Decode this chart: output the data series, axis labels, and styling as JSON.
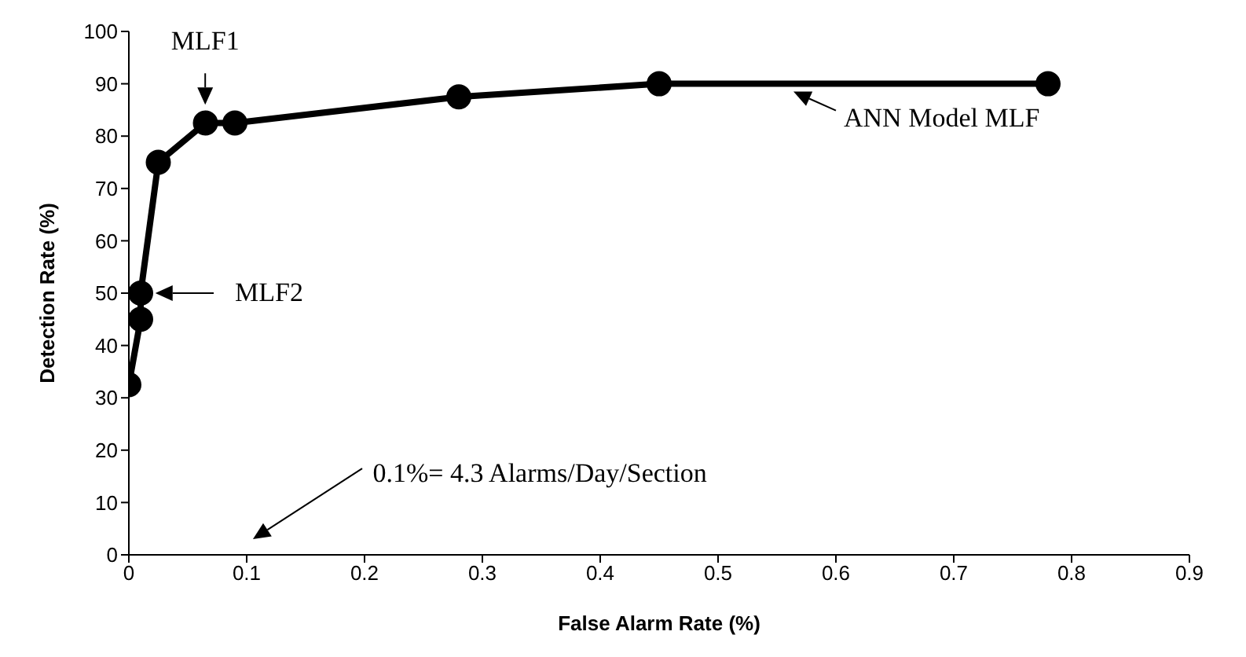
{
  "chart_data": {
    "type": "line",
    "xlabel": "False Alarm Rate (%)",
    "ylabel": "Detection Rate (%)",
    "x": [
      0,
      0.01,
      0.01,
      0.025,
      0.065,
      0.09,
      0.28,
      0.45,
      0.78
    ],
    "series": [
      {
        "color": "#000000",
        "values": [
          32.5,
          45,
          50,
          75,
          82.5,
          82.5,
          87.5,
          90,
          90
        ]
      }
    ],
    "xlim": [
      0,
      0.9
    ],
    "xticks": [
      0,
      0.1,
      0.2,
      0.3,
      0.4,
      0.5,
      0.6,
      0.7,
      0.8,
      0.9
    ],
    "ylim": [
      0,
      100
    ],
    "yticks": [
      0,
      10,
      20,
      30,
      40,
      50,
      60,
      70,
      80,
      90,
      100
    ],
    "grid": false,
    "marker": "circle",
    "line_style": "solid",
    "annotations": [
      "MLF1",
      "MLF2",
      {
        "text": "ANN Model MLF",
        "x": 0.56,
        "y": 90
      },
      "0.1%= 4.3 Alarms/Day/Section"
    ]
  }
}
